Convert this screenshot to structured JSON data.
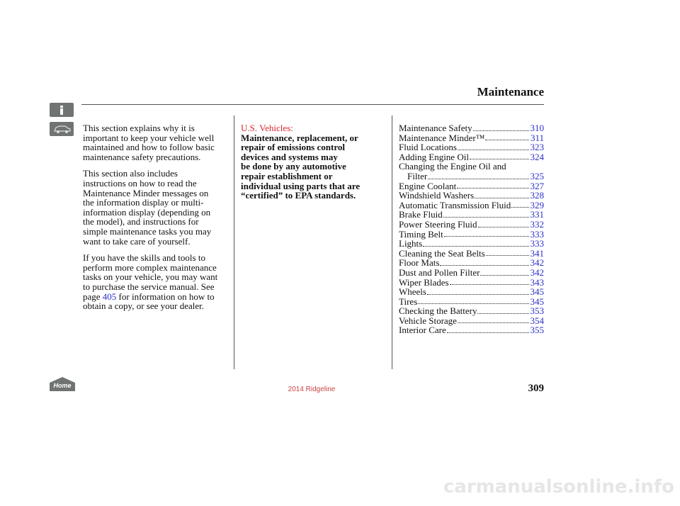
{
  "header": {
    "title": "Maintenance"
  },
  "sidebar": {
    "home_label": "Home"
  },
  "intro": {
    "paragraphs": [
      {
        "lines": [
          "This section explains why it is",
          "important to keep your vehicle well",
          "maintained and how to follow basic",
          "maintenance safety precautions."
        ]
      },
      {
        "lines": [
          "This section also includes",
          "instructions on how to read the",
          "Maintenance Minder messages on",
          "the information display or multi-",
          "information display (depending on",
          "the model), and instructions for",
          "simple maintenance tasks you may",
          "want to take care of yourself."
        ]
      },
      {
        "lines": [
          "If you have the skills and tools to",
          "perform more complex maintenance",
          "tasks on your vehicle, you may want",
          "to purchase the service manual. See",
          {
            "before": "page ",
            "link": "405",
            "after": " for information on how to"
          },
          "obtain a copy, or see your dealer."
        ]
      }
    ]
  },
  "notice": {
    "heading": "U.S. Vehicles:",
    "lines": [
      "Maintenance, replacement, or",
      "repair of emissions control",
      "devices and systems may",
      "be done by any automotive",
      "repair establishment or",
      "individual using parts that are",
      "“certified” to EPA standards."
    ]
  },
  "contents": [
    {
      "title_lines": [
        "Maintenance Safety"
      ],
      "page": "310"
    },
    {
      "title_lines": [
        "Maintenance Minder™"
      ],
      "page": "311"
    },
    {
      "title_lines": [
        "Fluid Locations"
      ],
      "page": "323"
    },
    {
      "title_lines": [
        "Adding Engine Oil"
      ],
      "page": "324"
    },
    {
      "title_lines": [
        "Changing the Engine Oil and",
        "Filter"
      ],
      "page": "325"
    },
    {
      "title_lines": [
        "Engine Coolant"
      ],
      "page": "327"
    },
    {
      "title_lines": [
        "Windshield Washers"
      ],
      "page": "328"
    },
    {
      "title_lines": [
        "Automatic Transmission Fluid"
      ],
      "page": "329"
    },
    {
      "title_lines": [
        "Brake Fluid"
      ],
      "page": "331"
    },
    {
      "title_lines": [
        "Power Steering Fluid"
      ],
      "page": "332"
    },
    {
      "title_lines": [
        "Timing Belt"
      ],
      "page": "333"
    },
    {
      "title_lines": [
        "Lights"
      ],
      "page": "333"
    },
    {
      "title_lines": [
        "Cleaning the Seat Belts"
      ],
      "page": "341"
    },
    {
      "title_lines": [
        "Floor Mats"
      ],
      "page": "342"
    },
    {
      "title_lines": [
        "Dust and Pollen Filter"
      ],
      "page": "342"
    },
    {
      "title_lines": [
        "Wiper Blades"
      ],
      "page": "343"
    },
    {
      "title_lines": [
        "Wheels"
      ],
      "page": "345"
    },
    {
      "title_lines": [
        "Tires"
      ],
      "page": "345"
    },
    {
      "title_lines": [
        "Checking the Battery"
      ],
      "page": "353"
    },
    {
      "title_lines": [
        "Vehicle Storage"
      ],
      "page": "354"
    },
    {
      "title_lines": [
        "Interior Care"
      ],
      "page": "355"
    }
  ],
  "footer": {
    "page_number": "309",
    "edition": "2014 Ridgeline",
    "watermark": "carmanualsonline.info"
  }
}
